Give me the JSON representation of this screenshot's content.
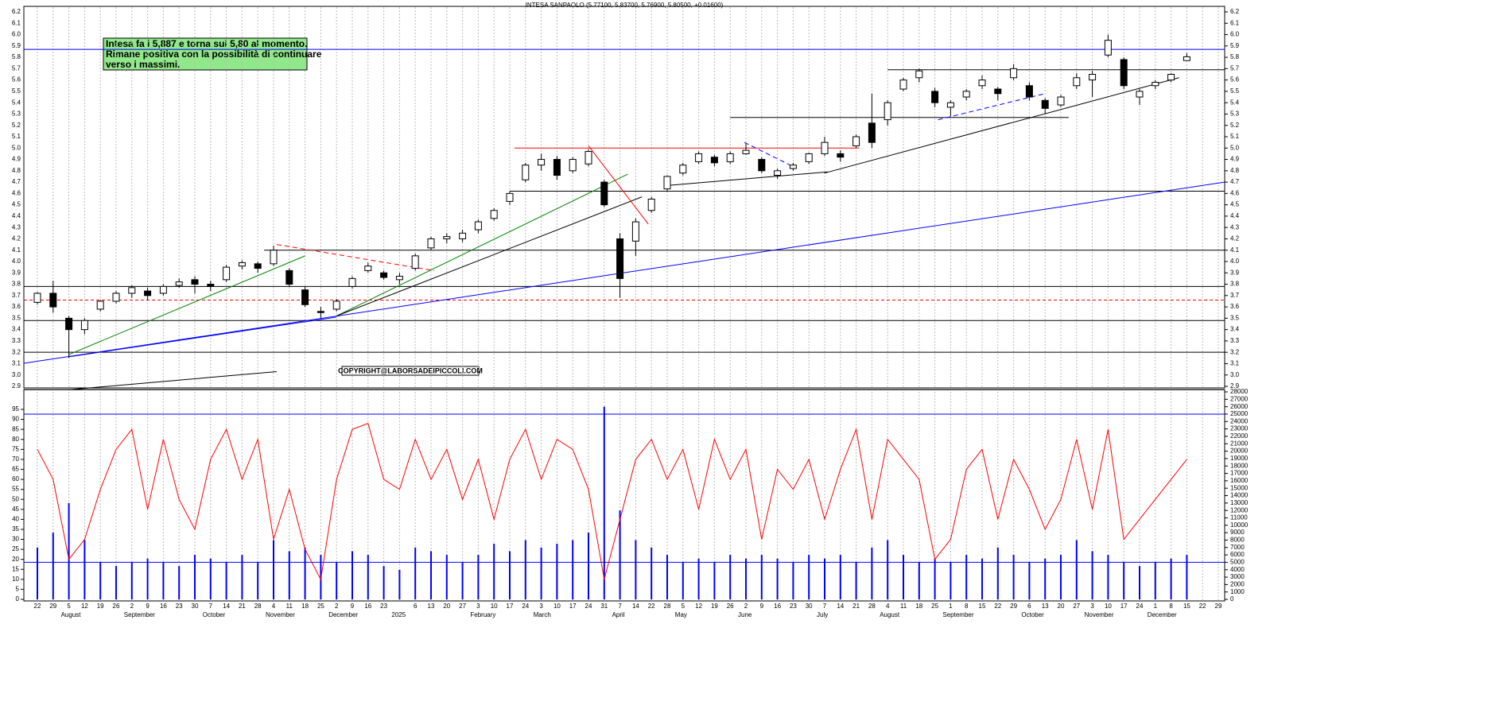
{
  "chart_data": {
    "type": "candlestick",
    "title": "INTESA SANPAOLO (5.77100, 5.83700, 5.76900, 5.80500, +0.01600)",
    "note": [
      "Intesa fa i 5,887 e torna sui 5,80 al momento.",
      "Rimane positiva con la possibilità di continuare",
      "verso i massimi."
    ],
    "copyright": "COPYRIGHT@LABORSADEIPICCOLI.COM",
    "categories": [
      "22",
      "29",
      "5",
      "12",
      "19",
      "26",
      "2",
      "9",
      "16",
      "23",
      "30",
      "7",
      "14",
      "21",
      "28",
      "4",
      "11",
      "18",
      "25",
      "2",
      "9",
      "16",
      "23",
      null,
      "6",
      "13",
      "20",
      "27",
      "3",
      "10",
      "17",
      "24",
      "3",
      "10",
      "17",
      "24",
      "31",
      "7",
      "14",
      "22",
      "28",
      "5",
      "12",
      "19",
      "26",
      "2",
      "9",
      "16",
      "23",
      "30",
      "7",
      "14",
      "21",
      "28",
      "4",
      "11",
      "18",
      "25",
      "1",
      "8",
      "15",
      "22",
      "29",
      "6",
      "13",
      "20",
      "27",
      "3",
      "10",
      "17",
      "24",
      "1",
      "8",
      "15",
      "22",
      "29"
    ],
    "months": [
      {
        "label": "August",
        "week": 2
      },
      {
        "label": "September",
        "week": 6
      },
      {
        "label": "October",
        "week": 11
      },
      {
        "label": "November",
        "week": 15
      },
      {
        "label": "December",
        "week": 19
      },
      {
        "label": "2025",
        "week": 23
      },
      {
        "label": "February",
        "week": 28
      },
      {
        "label": "March",
        "week": 32
      },
      {
        "label": "April",
        "week": 37
      },
      {
        "label": "May",
        "week": 41
      },
      {
        "label": "June",
        "week": 45
      },
      {
        "label": "July",
        "week": 50
      },
      {
        "label": "August",
        "week": 54
      },
      {
        "label": "September",
        "week": 58
      },
      {
        "label": "October",
        "week": 63
      },
      {
        "label": "November",
        "week": 67
      },
      {
        "label": "December",
        "week": 71
      }
    ],
    "ohlc": [
      [
        3.64,
        3.73,
        3.62,
        3.72
      ],
      [
        3.72,
        3.83,
        3.55,
        3.6
      ],
      [
        3.5,
        3.52,
        3.15,
        3.4
      ],
      [
        3.4,
        3.5,
        3.36,
        3.48
      ],
      [
        3.58,
        3.66,
        3.56,
        3.65
      ],
      [
        3.65,
        3.74,
        3.63,
        3.72
      ],
      [
        3.72,
        3.79,
        3.68,
        3.77
      ],
      [
        3.74,
        3.77,
        3.66,
        3.7
      ],
      [
        3.72,
        3.8,
        3.7,
        3.78
      ],
      [
        3.79,
        3.85,
        3.77,
        3.82
      ],
      [
        3.84,
        3.87,
        3.72,
        3.8
      ],
      [
        3.8,
        3.83,
        3.74,
        3.78
      ],
      [
        3.84,
        3.97,
        3.82,
        3.95
      ],
      [
        3.96,
        4.01,
        3.93,
        3.99
      ],
      [
        3.98,
        4.0,
        3.9,
        3.94
      ],
      [
        3.98,
        4.14,
        3.96,
        4.1
      ],
      [
        3.92,
        3.94,
        3.78,
        3.8
      ],
      [
        3.75,
        3.78,
        3.6,
        3.62
      ],
      [
        3.56,
        3.6,
        3.5,
        3.55
      ],
      [
        3.58,
        3.67,
        3.56,
        3.65
      ],
      [
        3.78,
        3.87,
        3.76,
        3.85
      ],
      [
        3.92,
        3.99,
        3.9,
        3.96
      ],
      [
        3.9,
        3.92,
        3.84,
        3.86
      ],
      [
        3.84,
        3.9,
        3.8,
        3.87
      ],
      [
        3.94,
        4.07,
        3.92,
        4.05
      ],
      [
        4.12,
        4.22,
        4.1,
        4.2
      ],
      [
        4.2,
        4.25,
        4.16,
        4.22
      ],
      [
        4.2,
        4.28,
        4.17,
        4.25
      ],
      [
        4.28,
        4.37,
        4.25,
        4.35
      ],
      [
        4.38,
        4.47,
        4.36,
        4.45
      ],
      [
        4.53,
        4.62,
        4.5,
        4.6
      ],
      [
        4.72,
        4.87,
        4.7,
        4.85
      ],
      [
        4.85,
        4.95,
        4.8,
        4.9
      ],
      [
        4.9,
        4.93,
        4.72,
        4.76
      ],
      [
        4.8,
        4.92,
        4.78,
        4.9
      ],
      [
        4.86,
        4.99,
        4.84,
        4.97
      ],
      [
        4.7,
        4.72,
        4.48,
        4.5
      ],
      [
        4.2,
        4.25,
        3.68,
        3.85
      ],
      [
        4.18,
        4.38,
        4.05,
        4.35
      ],
      [
        4.45,
        4.57,
        4.43,
        4.55
      ],
      [
        4.64,
        4.76,
        4.62,
        4.75
      ],
      [
        4.78,
        4.87,
        4.76,
        4.85
      ],
      [
        4.88,
        4.97,
        4.86,
        4.95
      ],
      [
        4.92,
        4.94,
        4.84,
        4.87
      ],
      [
        4.88,
        4.97,
        4.86,
        4.95
      ],
      [
        4.95,
        5.04,
        4.94,
        4.98
      ],
      [
        4.9,
        4.92,
        4.78,
        4.8
      ],
      [
        4.76,
        4.82,
        4.73,
        4.8
      ],
      [
        4.82,
        4.87,
        4.8,
        4.85
      ],
      [
        4.88,
        4.96,
        4.86,
        4.95
      ],
      [
        4.95,
        5.1,
        4.93,
        5.05
      ],
      [
        4.95,
        4.98,
        4.88,
        4.92
      ],
      [
        5.02,
        5.12,
        5.0,
        5.1
      ],
      [
        5.22,
        5.48,
        5.0,
        5.05
      ],
      [
        5.25,
        5.42,
        5.2,
        5.4
      ],
      [
        5.52,
        5.62,
        5.5,
        5.6
      ],
      [
        5.62,
        5.7,
        5.58,
        5.68
      ],
      [
        5.5,
        5.53,
        5.36,
        5.4
      ],
      [
        5.36,
        5.42,
        5.28,
        5.4
      ],
      [
        5.45,
        5.52,
        5.42,
        5.5
      ],
      [
        5.55,
        5.64,
        5.52,
        5.6
      ],
      [
        5.52,
        5.54,
        5.42,
        5.48
      ],
      [
        5.62,
        5.74,
        5.6,
        5.7
      ],
      [
        5.55,
        5.58,
        5.42,
        5.45
      ],
      [
        5.42,
        5.44,
        5.3,
        5.35
      ],
      [
        5.38,
        5.47,
        5.36,
        5.45
      ],
      [
        5.55,
        5.66,
        5.52,
        5.62
      ],
      [
        5.6,
        5.68,
        5.45,
        5.65
      ],
      [
        5.82,
        6.0,
        5.8,
        5.95
      ],
      [
        5.78,
        5.8,
        5.52,
        5.55
      ],
      [
        5.45,
        5.52,
        5.38,
        5.5
      ],
      [
        5.55,
        5.6,
        5.52,
        5.58
      ],
      [
        5.6,
        5.66,
        5.58,
        5.65
      ],
      [
        5.771,
        5.837,
        5.769,
        5.805
      ]
    ],
    "up_color": "#ffffff",
    "down_color": "#000000",
    "ylim": [
      2.9,
      6.2
    ],
    "yticks": [
      2.9,
      {
        "value": 3,
        "label": "3.0"
      },
      3.1,
      3.2,
      3.3,
      3.4,
      3.5,
      3.6,
      3.7,
      3.8,
      3.9,
      {
        "value": 4,
        "label": "4.0"
      },
      4.1,
      4.2,
      4.3,
      4.4,
      4.5,
      4.6,
      4.7,
      4.8,
      4.9,
      {
        "value": 5,
        "label": "5.0"
      },
      5.1,
      5.2,
      5.3,
      5.4,
      5.5,
      5.6,
      5.7,
      5.8,
      5.9,
      {
        "value": 6,
        "label": "6.0"
      },
      6.1,
      6.2
    ],
    "hlines": [
      {
        "value": 5.87,
        "color": "#0000ff",
        "dash": false,
        "start": -1,
        "end": 76
      },
      {
        "value": 5.69,
        "color": "#000000",
        "dash": false,
        "start": 54,
        "end": 76
      },
      {
        "value": 5.27,
        "color": "#000000",
        "dash": false,
        "start": 44,
        "end": 65.5
      },
      {
        "value": 5.0,
        "color": "#ff0000",
        "dash": false,
        "start": 30.3,
        "end": 52.2
      },
      {
        "value": 4.62,
        "color": "#000000",
        "dash": false,
        "start": 30,
        "end": 76
      },
      {
        "value": 4.1,
        "color": "#000000",
        "dash": false,
        "start": 14.4,
        "end": 76
      },
      {
        "value": 3.78,
        "color": "#000000",
        "dash": false,
        "start": -1,
        "end": 76
      },
      {
        "value": 3.66,
        "color": "#ff0000",
        "dash": true,
        "start": -1,
        "end": 76
      },
      {
        "value": 3.48,
        "color": "#000000",
        "dash": false,
        "start": -1,
        "end": 76
      },
      {
        "value": 3.2,
        "color": "#000000",
        "dash": false,
        "start": -1,
        "end": 76
      },
      {
        "value": 2.87,
        "color": "#000000",
        "dash": false,
        "start": -1,
        "end": 76
      }
    ],
    "tlines": [
      {
        "x": [
          -1,
          75.5
        ],
        "y": [
          3.1,
          4.7
        ],
        "color": "#0000ff",
        "dash": false
      },
      {
        "x": [
          2,
          19
        ],
        "y": [
          3.16,
          3.51
        ],
        "color": "#0000ff",
        "dash": false
      },
      {
        "x": [
          2,
          17
        ],
        "y": [
          3.18,
          4.05
        ],
        "color": "#008000",
        "dash": false
      },
      {
        "x": [
          19,
          37.5
        ],
        "y": [
          3.52,
          4.77
        ],
        "color": "#008000",
        "dash": false
      },
      {
        "x": [
          19,
          38.4
        ],
        "y": [
          3.52,
          4.57
        ],
        "color": "#000000",
        "dash": false
      },
      {
        "x": [
          15.2,
          25.2
        ],
        "y": [
          4.15,
          3.92
        ],
        "color": "#ff0000",
        "dash": true
      },
      {
        "x": [
          35,
          38.8
        ],
        "y": [
          5.02,
          4.33
        ],
        "color": "#ff0000",
        "dash": false
      },
      {
        "x": [
          40,
          50.2
        ],
        "y": [
          4.67,
          4.79
        ],
        "color": "#000000",
        "dash": false
      },
      {
        "x": [
          50,
          72.5
        ],
        "y": [
          4.78,
          5.62
        ],
        "color": "#000000",
        "dash": false
      },
      {
        "x": [
          57.2,
          64
        ],
        "y": [
          5.25,
          5.48
        ],
        "color": "#0000ff",
        "dash": true
      },
      {
        "x": [
          44.9,
          48.1
        ],
        "y": [
          5.05,
          4.83
        ],
        "color": "#0000ff",
        "dash": true
      },
      {
        "x": [
          2,
          15.2
        ],
        "y": [
          2.87,
          3.03
        ],
        "color": "#000000",
        "dash": false
      }
    ],
    "oscillator": {
      "color": "#ff0000",
      "values": [
        75,
        60,
        20,
        30,
        55,
        75,
        85,
        45,
        80,
        50,
        35,
        70,
        85,
        60,
        80,
        30,
        55,
        25,
        10,
        60,
        85,
        88,
        60,
        55,
        80,
        60,
        75,
        50,
        70,
        40,
        70,
        85,
        60,
        80,
        75,
        55,
        10,
        40,
        70,
        80,
        60,
        75,
        45,
        80,
        60,
        75,
        30,
        65,
        55,
        70,
        40,
        65,
        85,
        40,
        80,
        70,
        60,
        20,
        30,
        65,
        75,
        40,
        70,
        55,
        35,
        50,
        80,
        45,
        85,
        30,
        40,
        50,
        60,
        70
      ]
    },
    "olim": [
      0,
      95
    ],
    "oticks": [
      0,
      5,
      10,
      15,
      20,
      25,
      30,
      35,
      40,
      45,
      50,
      55,
      60,
      65,
      70,
      75,
      80,
      85,
      90,
      95
    ],
    "volume": {
      "color": "#0000ff",
      "values": [
        7000,
        9000,
        13000,
        8000,
        5000,
        4500,
        5000,
        5500,
        5000,
        4500,
        6000,
        5500,
        5000,
        6000,
        5000,
        8000,
        6500,
        7000,
        6000,
        5000,
        6500,
        6000,
        4500,
        4000,
        7000,
        6500,
        6000,
        5000,
        6000,
        7500,
        6500,
        8000,
        7000,
        7500,
        8000,
        9000,
        26000,
        12000,
        8000,
        7000,
        6000,
        5000,
        5500,
        5000,
        6000,
        5500,
        6000,
        5500,
        5000,
        6000,
        5500,
        6000,
        5000,
        7000,
        8000,
        6000,
        5000,
        5500,
        5000,
        6000,
        5500,
        7000,
        6000,
        5000,
        5500,
        6000,
        8000,
        6500,
        6000,
        5000,
        4500,
        5000,
        5500,
        6000
      ]
    },
    "y2lim": [
      0,
      28000
    ],
    "y2ticks": [
      0,
      1000,
      2000,
      3000,
      4000,
      5000,
      6000,
      7000,
      8000,
      9000,
      10000,
      11000,
      12000,
      13000,
      14000,
      15000,
      16000,
      17000,
      18000,
      19000,
      20000,
      21000,
      22000,
      23000,
      24000,
      25000,
      26000,
      27000,
      28000
    ],
    "vlines": [
      {
        "value": 25000,
        "color": "#0000ff"
      },
      {
        "value": 5000,
        "color": "#0000ff"
      }
    ]
  }
}
